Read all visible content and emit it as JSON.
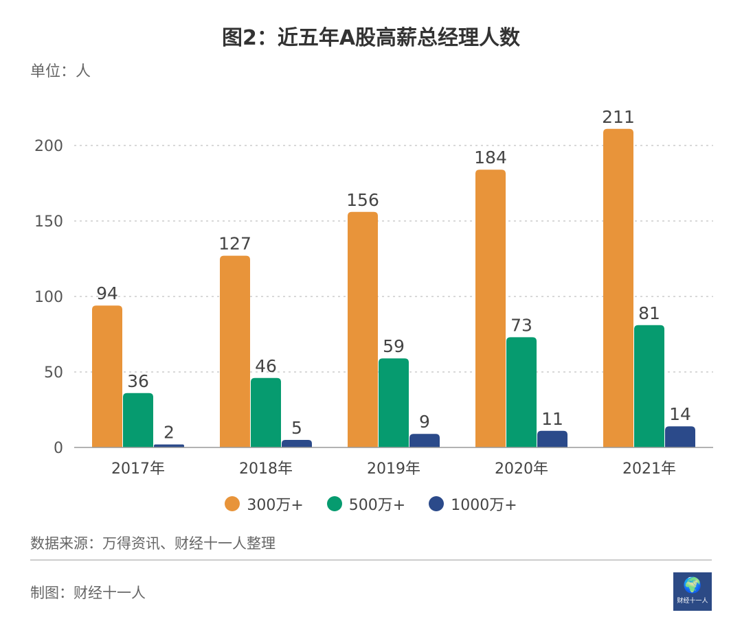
{
  "title": "图2：近五年A股高薪总经理人数",
  "unit_label": "单位：人",
  "source": "数据来源：万得资讯、财经十一人整理",
  "maker": "制图：财经十一人",
  "logo": {
    "text": "财经十一人",
    "icon": "globe-icon"
  },
  "colors": {
    "s1": "#E8943A",
    "s2": "#069B6F",
    "s3": "#2B4A8A",
    "grid": "#cccccc",
    "axis": "#999999"
  },
  "chart_data": {
    "type": "bar",
    "categories": [
      "2017年",
      "2018年",
      "2019年",
      "2020年",
      "2021年"
    ],
    "series": [
      {
        "name": "300万+",
        "values": [
          94,
          127,
          156,
          184,
          211
        ]
      },
      {
        "name": "500万+",
        "values": [
          36,
          46,
          59,
          73,
          81
        ]
      },
      {
        "name": "1000万+",
        "values": [
          2,
          5,
          9,
          11,
          14
        ]
      }
    ],
    "yticks": [
      0,
      50,
      100,
      150,
      200
    ],
    "ylim": [
      0,
      220
    ],
    "grid": true,
    "legend": "bottom-center"
  }
}
